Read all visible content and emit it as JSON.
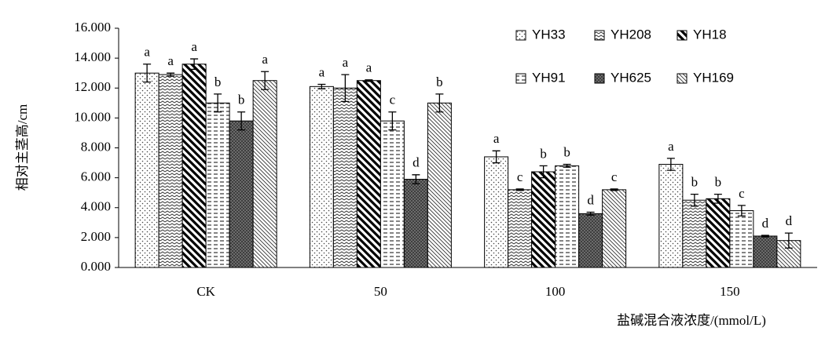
{
  "chart_data": {
    "type": "bar",
    "y_label": "相对主茎高/cm",
    "x_label": "盐碱混合液浓度/(mmol/L)",
    "categories": [
      "CK",
      "50",
      "100",
      "150"
    ],
    "ylim": [
      0,
      16
    ],
    "yticks": [
      {
        "value": 0,
        "label": "0.000"
      },
      {
        "value": 2,
        "label": "2.000"
      },
      {
        "value": 4,
        "label": "4.000"
      },
      {
        "value": 6,
        "label": "6.000"
      },
      {
        "value": 8,
        "label": "8.000"
      },
      {
        "value": 10,
        "label": "10.000"
      },
      {
        "value": 12,
        "label": "12.000"
      },
      {
        "value": 14,
        "label": "14.000"
      },
      {
        "value": 16,
        "label": "16.000"
      }
    ],
    "series": [
      {
        "name": "YH33",
        "color": "#000000",
        "pattern": "dots",
        "values": [
          13.0,
          12.1,
          7.4,
          6.9
        ],
        "errors": [
          0.6,
          0.15,
          0.4,
          0.4
        ],
        "letters": [
          "a",
          "a",
          "a",
          "a"
        ]
      },
      {
        "name": "YH208",
        "color": "#000000",
        "pattern": "waves",
        "values": [
          12.9,
          12.0,
          5.2,
          4.5
        ],
        "errors": [
          0.1,
          0.9,
          0.05,
          0.4
        ],
        "letters": [
          "a",
          "a",
          "c",
          "b"
        ]
      },
      {
        "name": "YH18",
        "color": "#000000",
        "pattern": "thick-diag",
        "values": [
          13.6,
          12.5,
          6.4,
          4.6
        ],
        "errors": [
          0.35,
          0.05,
          0.4,
          0.3
        ],
        "letters": [
          "a",
          "a",
          "b",
          "b"
        ]
      },
      {
        "name": "YH91",
        "color": "#000000",
        "pattern": "dashes",
        "values": [
          11.0,
          9.8,
          6.8,
          3.8
        ],
        "errors": [
          0.6,
          0.6,
          0.1,
          0.35
        ],
        "letters": [
          "b",
          "c",
          "b",
          "c"
        ]
      },
      {
        "name": "YH625",
        "color": "#000000",
        "pattern": "cross",
        "values": [
          9.8,
          5.9,
          3.6,
          2.1
        ],
        "errors": [
          0.6,
          0.3,
          0.1,
          0.05
        ],
        "letters": [
          "b",
          "d",
          "d",
          "d"
        ]
      },
      {
        "name": "YH169",
        "color": "#000000",
        "pattern": "thin-diag",
        "values": [
          12.5,
          11.0,
          5.2,
          1.8
        ],
        "errors": [
          0.6,
          0.6,
          0.05,
          0.5
        ],
        "letters": [
          "a",
          "b",
          "c",
          "d"
        ]
      }
    ]
  }
}
